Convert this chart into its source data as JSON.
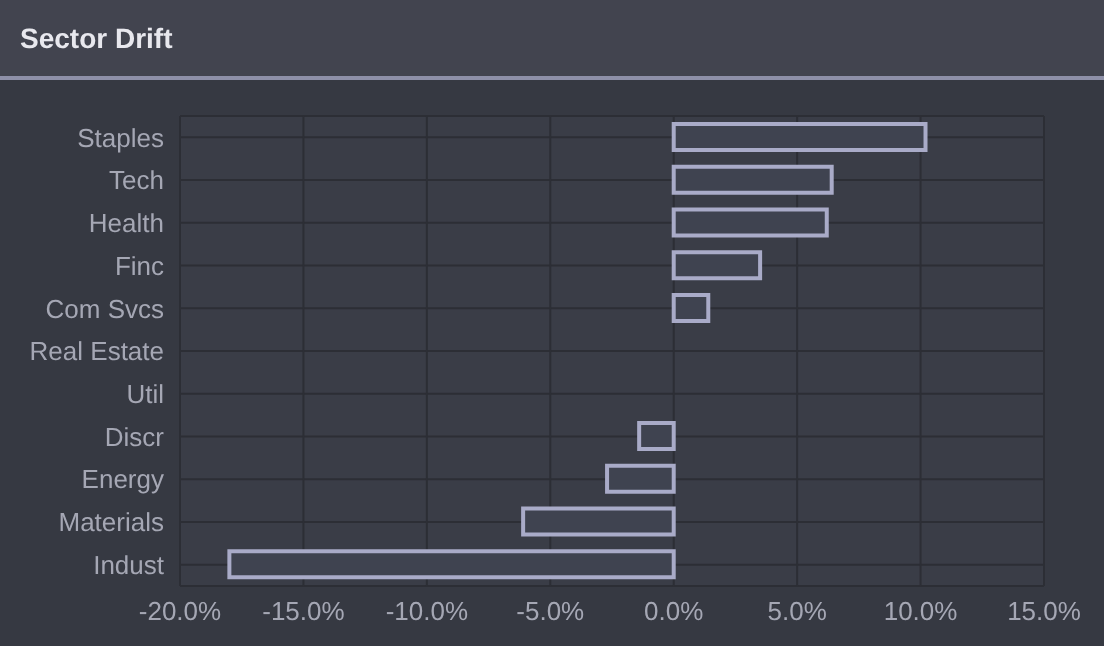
{
  "chart_data": {
    "type": "bar",
    "title": "Sector Drift",
    "orientation": "horizontal",
    "categories": [
      "Staples",
      "Tech",
      "Health",
      "Finc",
      "Com Svcs",
      "Real Estate",
      "Util",
      "Discr",
      "Energy",
      "Materials",
      "Indust"
    ],
    "values": [
      10.2,
      6.4,
      6.2,
      3.5,
      1.4,
      0,
      0,
      -1.4,
      -2.7,
      -6.1,
      -18.0
    ],
    "color": "#a9abc8",
    "xlim": [
      -20,
      15
    ],
    "xticks": [
      {
        "value": -20,
        "label": "-20.0%"
      },
      {
        "value": -15,
        "label": "-15.0%"
      },
      {
        "value": -10,
        "label": "-10.0%"
      },
      {
        "value": -5,
        "label": "-5.0%"
      },
      {
        "value": 0,
        "label": "0.0%"
      },
      {
        "value": 5,
        "label": "5.0%"
      },
      {
        "value": 10,
        "label": "10.0%"
      },
      {
        "value": 15,
        "label": "15.0%"
      }
    ],
    "grid": true
  }
}
